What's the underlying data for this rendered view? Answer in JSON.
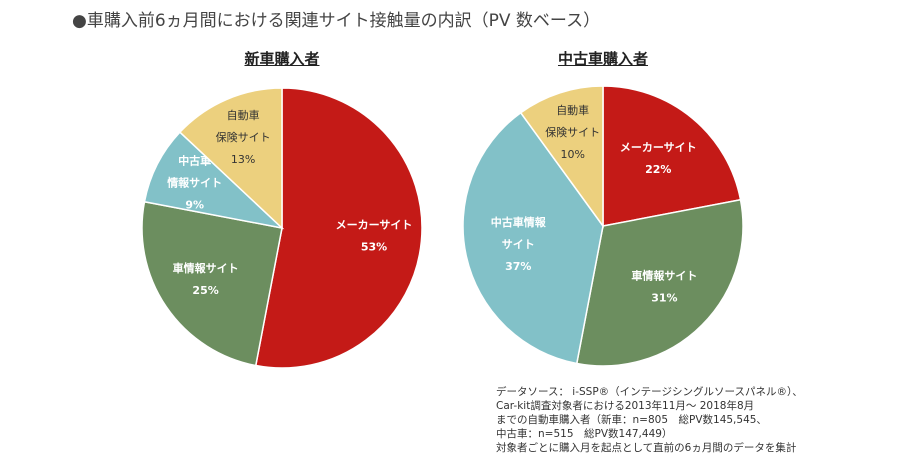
{
  "title": "●車購入前6ヵ月間における関連サイト接触量の内訳（PV 数ベース）",
  "colors": {
    "maker": "#c41a17",
    "info": "#6c8e5f",
    "used_info": "#82c1c8",
    "insurance": "#ecd07e"
  },
  "chart_data": [
    {
      "type": "pie",
      "title": "新車購入者",
      "slices": [
        {
          "label": [
            "メーカーサイト"
          ],
          "value": 53,
          "value_label": "53%",
          "color_key": "maker",
          "text_color": "#ffffff"
        },
        {
          "label": [
            "車情報サイト"
          ],
          "value": 25,
          "value_label": "25%",
          "color_key": "info",
          "text_color": "#ffffff"
        },
        {
          "label": [
            "中古車",
            "情報サイト"
          ],
          "value": 9,
          "value_label": "9%",
          "color_key": "used_info",
          "text_color": "#ffffff"
        },
        {
          "label": [
            "自動車",
            "保険サイト"
          ],
          "value": 13,
          "value_label": "13%",
          "color_key": "insurance",
          "text_color": "#333333"
        }
      ]
    },
    {
      "type": "pie",
      "title": "中古車購入者",
      "slices": [
        {
          "label": [
            "メーカーサイト"
          ],
          "value": 22,
          "value_label": "22%",
          "color_key": "maker",
          "text_color": "#ffffff"
        },
        {
          "label": [
            "車情報サイト"
          ],
          "value": 31,
          "value_label": "31%",
          "color_key": "info",
          "text_color": "#ffffff"
        },
        {
          "label": [
            "中古車情報",
            "サイト"
          ],
          "value": 37,
          "value_label": "37%",
          "color_key": "used_info",
          "text_color": "#ffffff"
        },
        {
          "label": [
            "自動車",
            "保険サイト"
          ],
          "value": 10,
          "value_label": "10%",
          "color_key": "insurance",
          "text_color": "#333333"
        }
      ]
    }
  ],
  "source_note": [
    "データソース： i-SSP®（インテージシングルソースパネル®）、",
    "Car-kit調査対象者における2013年11月～ 2018年8月",
    "までの自動車購入者（新車：n=805　総PV数145,545、",
    "中古車：n=515　総PV数147,449）",
    "対象者ごとに購入月を起点として直前の6ヵ月間のデータを集計"
  ]
}
